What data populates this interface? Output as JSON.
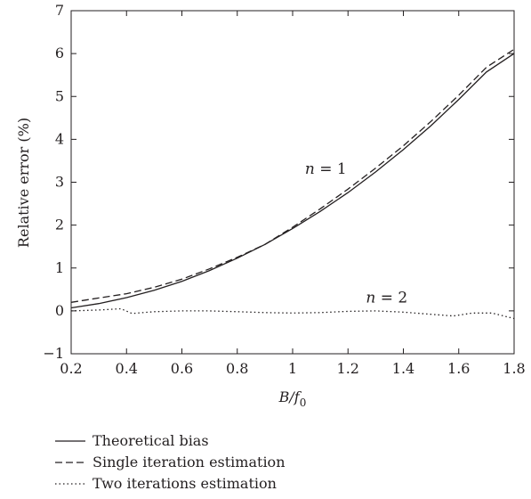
{
  "chart_data": {
    "type": "line",
    "title": "",
    "xlabel": "B/f0",
    "xlabel_main": "B/",
    "xlabel_var": "f",
    "xlabel_sub": "0",
    "ylabel": "Relative error (%)",
    "xlim": [
      0.2,
      1.8
    ],
    "ylim": [
      -1,
      7
    ],
    "xticks": [
      0.2,
      0.4,
      0.6,
      0.8,
      1,
      1.2,
      1.4,
      1.6,
      1.8
    ],
    "yticks": [
      -1,
      0,
      1,
      2,
      3,
      4,
      5,
      6,
      7
    ],
    "grid": false,
    "legend_position": "bottom-left",
    "series": [
      {
        "name": "Theoretical bias",
        "style": "solid",
        "x": [
          0.2,
          0.3,
          0.4,
          0.5,
          0.6,
          0.7,
          0.8,
          0.9,
          1.0,
          1.1,
          1.2,
          1.3,
          1.4,
          1.5,
          1.6,
          1.7,
          1.8
        ],
        "y": [
          0.07,
          0.17,
          0.31,
          0.48,
          0.69,
          0.94,
          1.23,
          1.55,
          1.92,
          2.32,
          2.76,
          3.24,
          3.76,
          4.32,
          4.93,
          5.57,
          6.0
        ]
      },
      {
        "name": "Single iteration estimation",
        "style": "dashed",
        "x": [
          0.2,
          0.3,
          0.4,
          0.5,
          0.6,
          0.7,
          0.8,
          0.9,
          1.0,
          1.1,
          1.2,
          1.3,
          1.4,
          1.5,
          1.6,
          1.7,
          1.8
        ],
        "y": [
          0.2,
          0.3,
          0.4,
          0.55,
          0.74,
          0.98,
          1.25,
          1.55,
          1.95,
          2.38,
          2.84,
          3.33,
          3.85,
          4.42,
          5.03,
          5.68,
          6.1
        ]
      },
      {
        "name": "Two iterations estimation",
        "style": "dotted",
        "x": [
          0.2,
          0.3,
          0.38,
          0.42,
          0.5,
          0.6,
          0.7,
          0.8,
          0.9,
          1.0,
          1.1,
          1.2,
          1.3,
          1.4,
          1.5,
          1.58,
          1.65,
          1.72,
          1.8
        ],
        "y": [
          0.0,
          0.02,
          0.05,
          -0.06,
          -0.02,
          0.0,
          0.0,
          -0.02,
          -0.04,
          -0.05,
          -0.04,
          -0.01,
          0.0,
          -0.03,
          -0.08,
          -0.12,
          -0.05,
          -0.05,
          -0.18
        ]
      }
    ],
    "annotations": [
      {
        "text": "n = 1",
        "var": "n",
        "rest": " = 1",
        "x": 1.12,
        "y": 3.2
      },
      {
        "text": "n = 2",
        "var": "n",
        "rest": " = 2",
        "x": 1.34,
        "y": 0.2
      }
    ]
  }
}
